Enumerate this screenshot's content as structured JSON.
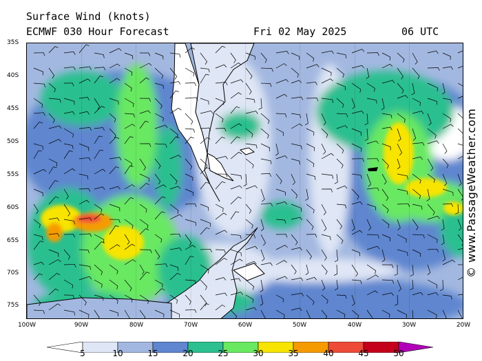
{
  "header": {
    "line1": "Surface Wind (knots)",
    "model_run": "ECMWF 030 Hour Forecast",
    "valid_date": "Fri 02 May 2025",
    "valid_time": "06 UTC"
  },
  "credit": "© www.PassageWeather.com",
  "map": {
    "lat_labels": [
      "35S",
      "40S",
      "45S",
      "50S",
      "55S",
      "60S",
      "65S",
      "70S",
      "75S"
    ],
    "lon_labels": [
      "100W",
      "90W",
      "80W",
      "70W",
      "60W",
      "50W",
      "40W",
      "30W",
      "20W"
    ],
    "lat_range": [
      -35,
      -77
    ],
    "lon_range": [
      -100,
      -20
    ]
  },
  "colorbar": {
    "colors": [
      "#ffffff",
      "#dfe6f5",
      "#a3b8e0",
      "#5f86cf",
      "#2cbf8f",
      "#69e862",
      "#f7e400",
      "#f59b00",
      "#ee4a38",
      "#c4001c",
      "#b200b8"
    ],
    "ticks": [
      "5",
      "10",
      "15",
      "20",
      "25",
      "30",
      "35",
      "40",
      "45",
      "50"
    ]
  }
}
